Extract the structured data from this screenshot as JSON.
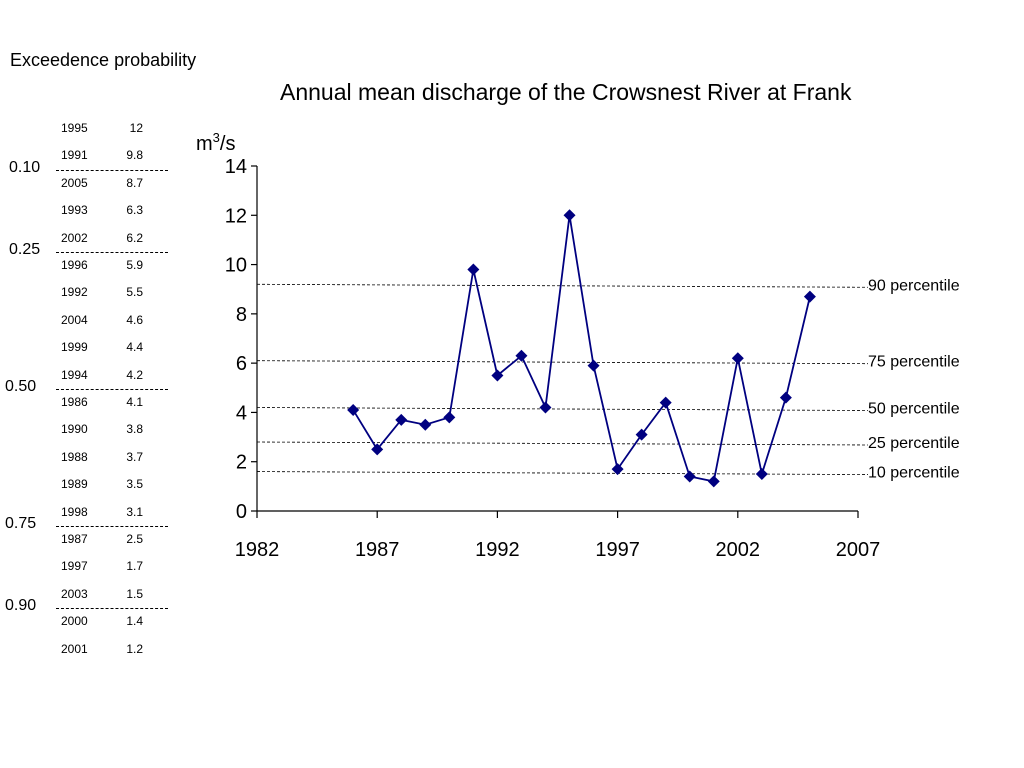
{
  "heading": "Exceedence probability",
  "ranked_table": {
    "rows": [
      {
        "year": "1995",
        "value": "12"
      },
      {
        "year": "1991",
        "value": "9.8"
      },
      {
        "year": "2005",
        "value": "8.7"
      },
      {
        "year": "1993",
        "value": "6.3"
      },
      {
        "year": "2002",
        "value": "6.2"
      },
      {
        "year": "1996",
        "value": "5.9"
      },
      {
        "year": "1992",
        "value": "5.5"
      },
      {
        "year": "2004",
        "value": "4.6"
      },
      {
        "year": "1999",
        "value": "4.4"
      },
      {
        "year": "1994",
        "value": "4.2"
      },
      {
        "year": "1986",
        "value": "4.1"
      },
      {
        "year": "1990",
        "value": "3.8"
      },
      {
        "year": "1988",
        "value": "3.7"
      },
      {
        "year": "1989",
        "value": "3.5"
      },
      {
        "year": "1998",
        "value": "3.1"
      },
      {
        "year": "1987",
        "value": "2.5"
      },
      {
        "year": "1997",
        "value": "1.7"
      },
      {
        "year": "2003",
        "value": "1.5"
      },
      {
        "year": "2000",
        "value": "1.4"
      },
      {
        "year": "2001",
        "value": "1.2"
      }
    ],
    "probability_marks": [
      {
        "label": "0.10",
        "after_rank": 2
      },
      {
        "label": "0.25",
        "after_rank": 5
      },
      {
        "label": "0.50",
        "after_rank": 10
      },
      {
        "label": "0.75",
        "after_rank": 15
      },
      {
        "label": "0.90",
        "after_rank": 18
      }
    ]
  },
  "chart_data": {
    "type": "line",
    "title": "Annual mean discharge of the Crowsnest River at Frank",
    "ylabel": "m3/s",
    "xlabel": "",
    "xlim": [
      1982,
      2007
    ],
    "ylim": [
      0,
      14
    ],
    "xticks": [
      "1982",
      "1987",
      "1992",
      "1997",
      "2002",
      "2007"
    ],
    "yticks": [
      "0",
      "2",
      "4",
      "6",
      "8",
      "10",
      "12",
      "14"
    ],
    "grid": false,
    "series": [
      {
        "x": [
          1986,
          1987,
          1988,
          1989,
          1990,
          1991,
          1992,
          1993,
          1994,
          1995,
          1996,
          1997,
          1998,
          1999,
          2000,
          2001,
          2002,
          2003,
          2004,
          2005
        ],
        "values": [
          4.1,
          2.5,
          3.7,
          3.5,
          3.8,
          9.8,
          5.5,
          6.3,
          4.2,
          12,
          5.9,
          1.7,
          3.1,
          4.4,
          1.4,
          1.2,
          6.2,
          1.5,
          4.6,
          8.7
        ],
        "color": "#000080"
      }
    ],
    "percentile_lines": [
      {
        "label": "90 percentile",
        "value": 9.2
      },
      {
        "label": "75 percentile",
        "value": 6.1
      },
      {
        "label": "50 percentile",
        "value": 4.2
      },
      {
        "label": "25 percentile",
        "value": 2.8
      },
      {
        "label": "10 percentile",
        "value": 1.6
      }
    ]
  }
}
